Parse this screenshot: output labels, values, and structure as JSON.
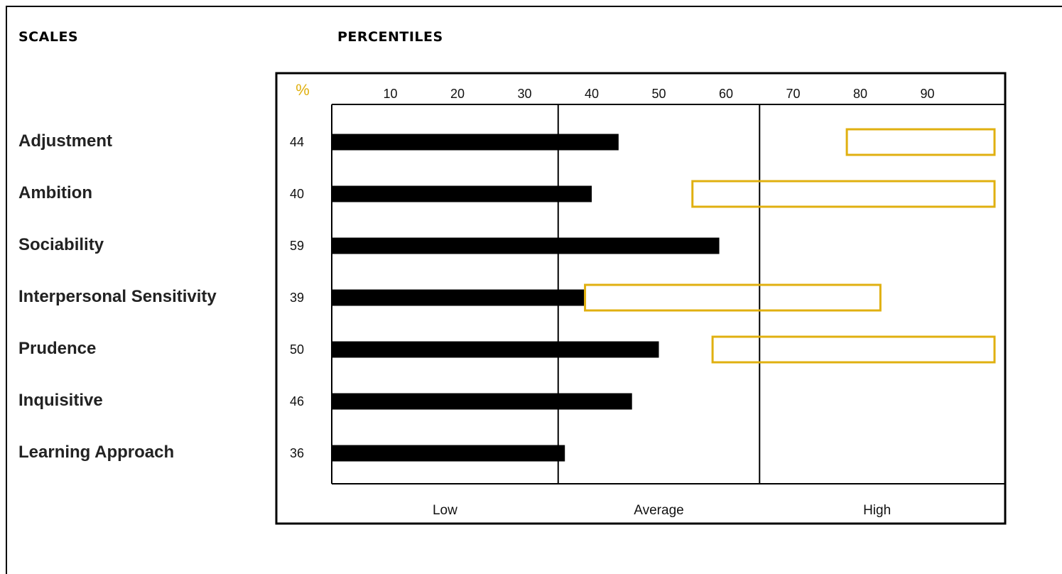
{
  "headers": {
    "scales": "SCALES",
    "percentiles": "PERCENTILES"
  },
  "colors": {
    "bar": "#000000",
    "range_box": "#e0b010",
    "percent_sign": "#e0b010",
    "text": "#222222"
  },
  "chart_data": {
    "type": "bar",
    "orientation": "horizontal",
    "percent_symbol": "%",
    "x_ticks": [
      10,
      20,
      30,
      40,
      50,
      60,
      70,
      80,
      90
    ],
    "xlim": [
      0,
      100
    ],
    "zones": [
      {
        "label": "Low",
        "from": 0,
        "to": 35
      },
      {
        "label": "Average",
        "from": 35,
        "to": 65
      },
      {
        "label": "High",
        "from": 65,
        "to": 100
      }
    ],
    "categories": [
      "Adjustment",
      "Ambition",
      "Sociability",
      "Interpersonal Sensitivity",
      "Prudence",
      "Inquisitive",
      "Learning Approach"
    ],
    "values": [
      44,
      40,
      59,
      39,
      50,
      46,
      36
    ],
    "value_labels": [
      "44",
      "40",
      "59",
      "39",
      "50",
      "46",
      "36"
    ],
    "target_ranges": [
      [
        78,
        100
      ],
      [
        55,
        100
      ],
      null,
      [
        39,
        83
      ],
      [
        58,
        100
      ],
      null,
      null
    ]
  }
}
